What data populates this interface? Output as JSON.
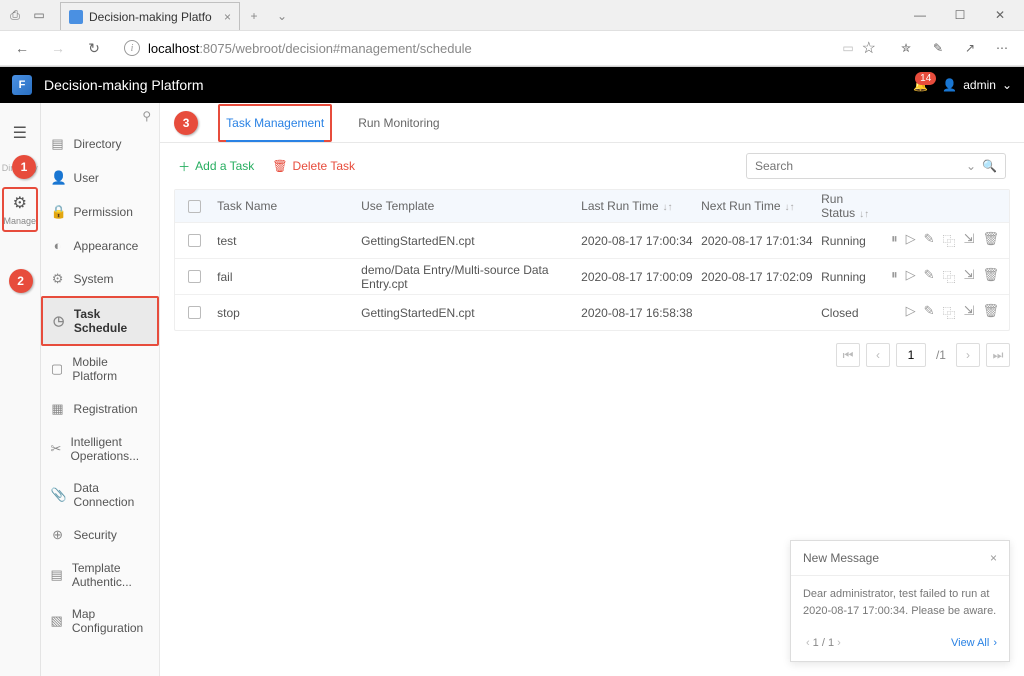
{
  "browser": {
    "tab_title": "Decision-making Platfo",
    "url_host": "localhost",
    "url_port": ":8075",
    "url_path": "/webroot/decision#management/schedule"
  },
  "app": {
    "title": "Decision-making Platform",
    "notification_count": "14",
    "username": "admin"
  },
  "rail": {
    "directory_label": "Directory",
    "manage_label": "Manage"
  },
  "sidebar": {
    "items": [
      {
        "label": "Directory",
        "icon": "▤"
      },
      {
        "label": "User",
        "icon": "👤"
      },
      {
        "label": "Permission",
        "icon": "🔒"
      },
      {
        "label": "Appearance",
        "icon": "◐"
      },
      {
        "label": "System",
        "icon": "⚙"
      },
      {
        "label": "Task Schedule",
        "icon": "◷"
      },
      {
        "label": "Mobile Platform",
        "icon": "▢"
      },
      {
        "label": "Registration",
        "icon": "▦"
      },
      {
        "label": "Intelligent Operations...",
        "icon": "✂"
      },
      {
        "label": "Data Connection",
        "icon": "📎"
      },
      {
        "label": "Security",
        "icon": "⊕"
      },
      {
        "label": "Template Authentic...",
        "icon": "▤"
      },
      {
        "label": "Map Configuration",
        "icon": "▧"
      }
    ]
  },
  "tabs": {
    "task_mgmt": "Task Management",
    "run_mon": "Run Monitoring"
  },
  "toolbar": {
    "add": "Add a Task",
    "delete": "Delete Task",
    "search_placeholder": "Search"
  },
  "table": {
    "headers": {
      "name": "Task Name",
      "template": "Use Template",
      "last_run": "Last Run Time",
      "next_run": "Next Run Time",
      "status": "Run Status"
    },
    "rows": [
      {
        "name": "test",
        "tpl": "GettingStartedEN.cpt",
        "last": "2020-08-17 17:00:34",
        "next": "2020-08-17 17:01:34",
        "status": "Running",
        "actions": [
          "pause",
          "play",
          "edit",
          "copy",
          "export",
          "trash"
        ]
      },
      {
        "name": "fail",
        "tpl": "demo/Data Entry/Multi-source Data Entry.cpt",
        "last": "2020-08-17 17:00:09",
        "next": "2020-08-17 17:02:09",
        "status": "Running",
        "actions": [
          "pause",
          "play",
          "edit",
          "copy",
          "export",
          "trash"
        ]
      },
      {
        "name": "stop",
        "tpl": "GettingStartedEN.cpt",
        "last": "2020-08-17 16:58:38",
        "next": "",
        "status": "Closed",
        "actions": [
          "play",
          "edit",
          "copy",
          "export",
          "trash"
        ]
      }
    ]
  },
  "pager": {
    "current": "1",
    "total": "/1"
  },
  "popup": {
    "title": "New Message",
    "body": "Dear administrator, test failed to run at 2020-08-17 17:00:34. Please be aware.",
    "counter": "1 / 1",
    "view_all": "View All"
  },
  "callouts": {
    "c1": "1",
    "c2": "2",
    "c3": "3"
  }
}
